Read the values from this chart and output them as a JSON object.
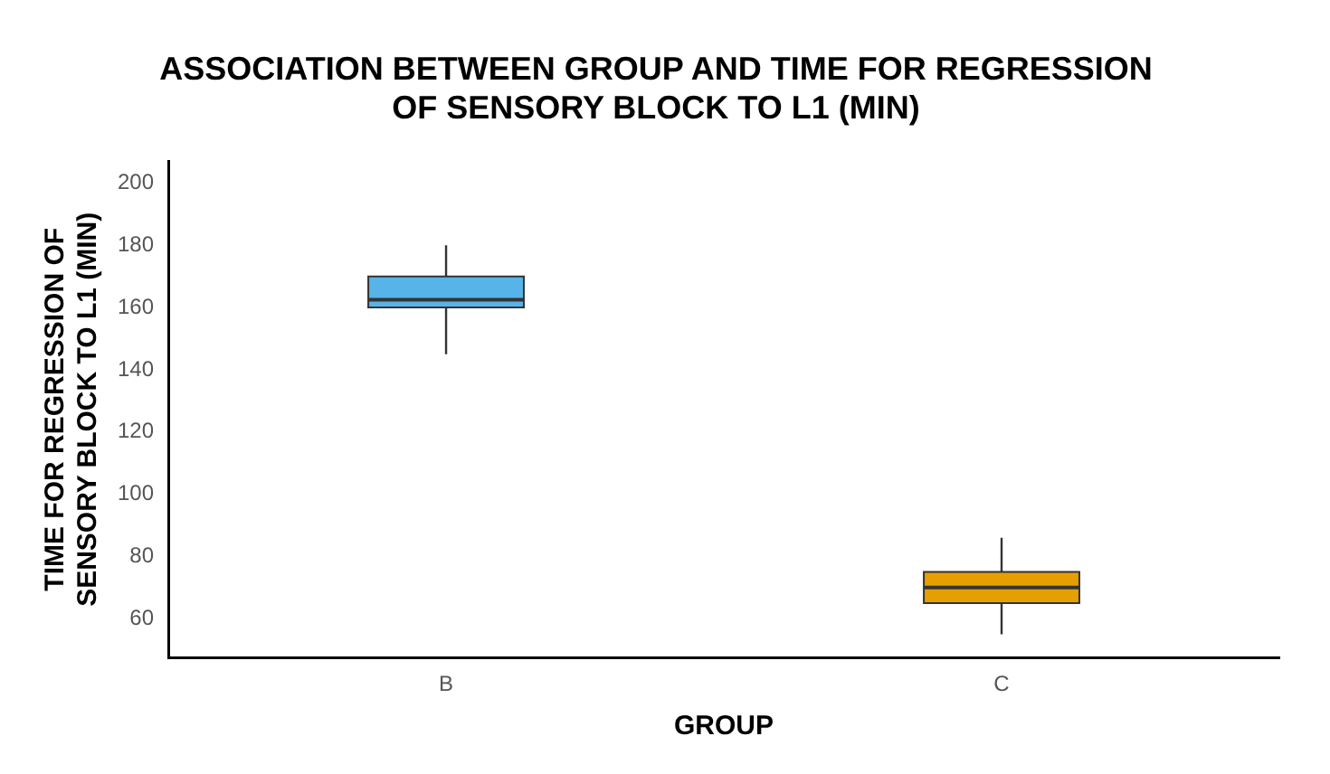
{
  "chart_data": {
    "type": "box",
    "title": "ASSOCIATION BETWEEN GROUP AND TIME FOR REGRESSION OF SENSORY BLOCK TO L1 (MIN)",
    "xlabel": "GROUP",
    "ylabel": "TIME FOR REGRESSION OF SENSORY BLOCK TO L1 (MIN)",
    "categories": [
      "B",
      "C"
    ],
    "colors": [
      "#56b4e9",
      "#e69f00"
    ],
    "boxes": [
      {
        "low": 145,
        "q1": 160,
        "median": 162.5,
        "q3": 170,
        "high": 180
      },
      {
        "low": 55,
        "q1": 65,
        "median": 70,
        "q3": 75,
        "high": 86
      }
    ],
    "ylim": [
      47.5,
      207
    ],
    "yticks": [
      60,
      80,
      100,
      120,
      140,
      160,
      180,
      200
    ],
    "grid": false,
    "legend": false
  }
}
